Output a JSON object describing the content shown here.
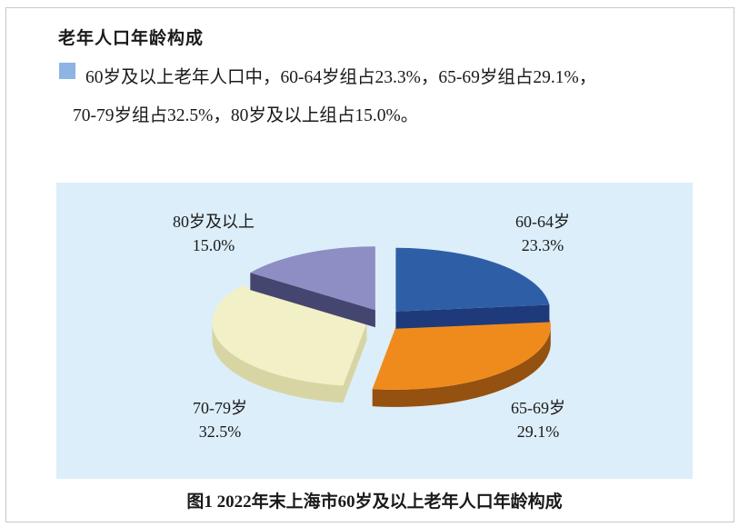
{
  "document": {
    "title": "老年人口年龄构成",
    "summary_line1": "60岁及以上老年人口中，60-64岁组占23.3%，65-69岁组占29.1%，",
    "summary_line2": "70-79岁组占32.5%，80岁及以上组占15.0%。",
    "caption": "图1  2022年末上海市60岁及以上老年人口年龄构成",
    "bullet_color": "#8db4e2"
  },
  "colors": {
    "page_background": "#ffffff",
    "page_border": "#c9c9c9",
    "panel_background": "#dceef9",
    "text": "#1a1a1a"
  },
  "chart_data": {
    "type": "pie",
    "style": "3d-exploded-pie",
    "title": "图1  2022年末上海市60岁及以上老年人口年龄构成",
    "unit": "percent",
    "start_angle_deg": 0,
    "clockwise": true,
    "legend_position": "none",
    "background": "#dceef9",
    "slices": [
      {
        "label": "60-64岁",
        "value": 23.3,
        "pct_label": "23.3%",
        "color": "#2e5fa6",
        "side_color": "#1e3a7a"
      },
      {
        "label": "65-69岁",
        "value": 29.1,
        "pct_label": "29.1%",
        "color": "#ef8b1c",
        "side_color": "#94510f"
      },
      {
        "label": "70-79岁",
        "value": 32.5,
        "pct_label": "32.5%",
        "color": "#f2f0c6",
        "side_color": "#d8d5a4"
      },
      {
        "label": "80岁及以上",
        "value": 15.0,
        "pct_label": "15.0%",
        "color": "#8e8dc4",
        "side_color": "#45466f"
      }
    ],
    "draw_order": [
      2,
      3,
      1,
      0
    ]
  }
}
